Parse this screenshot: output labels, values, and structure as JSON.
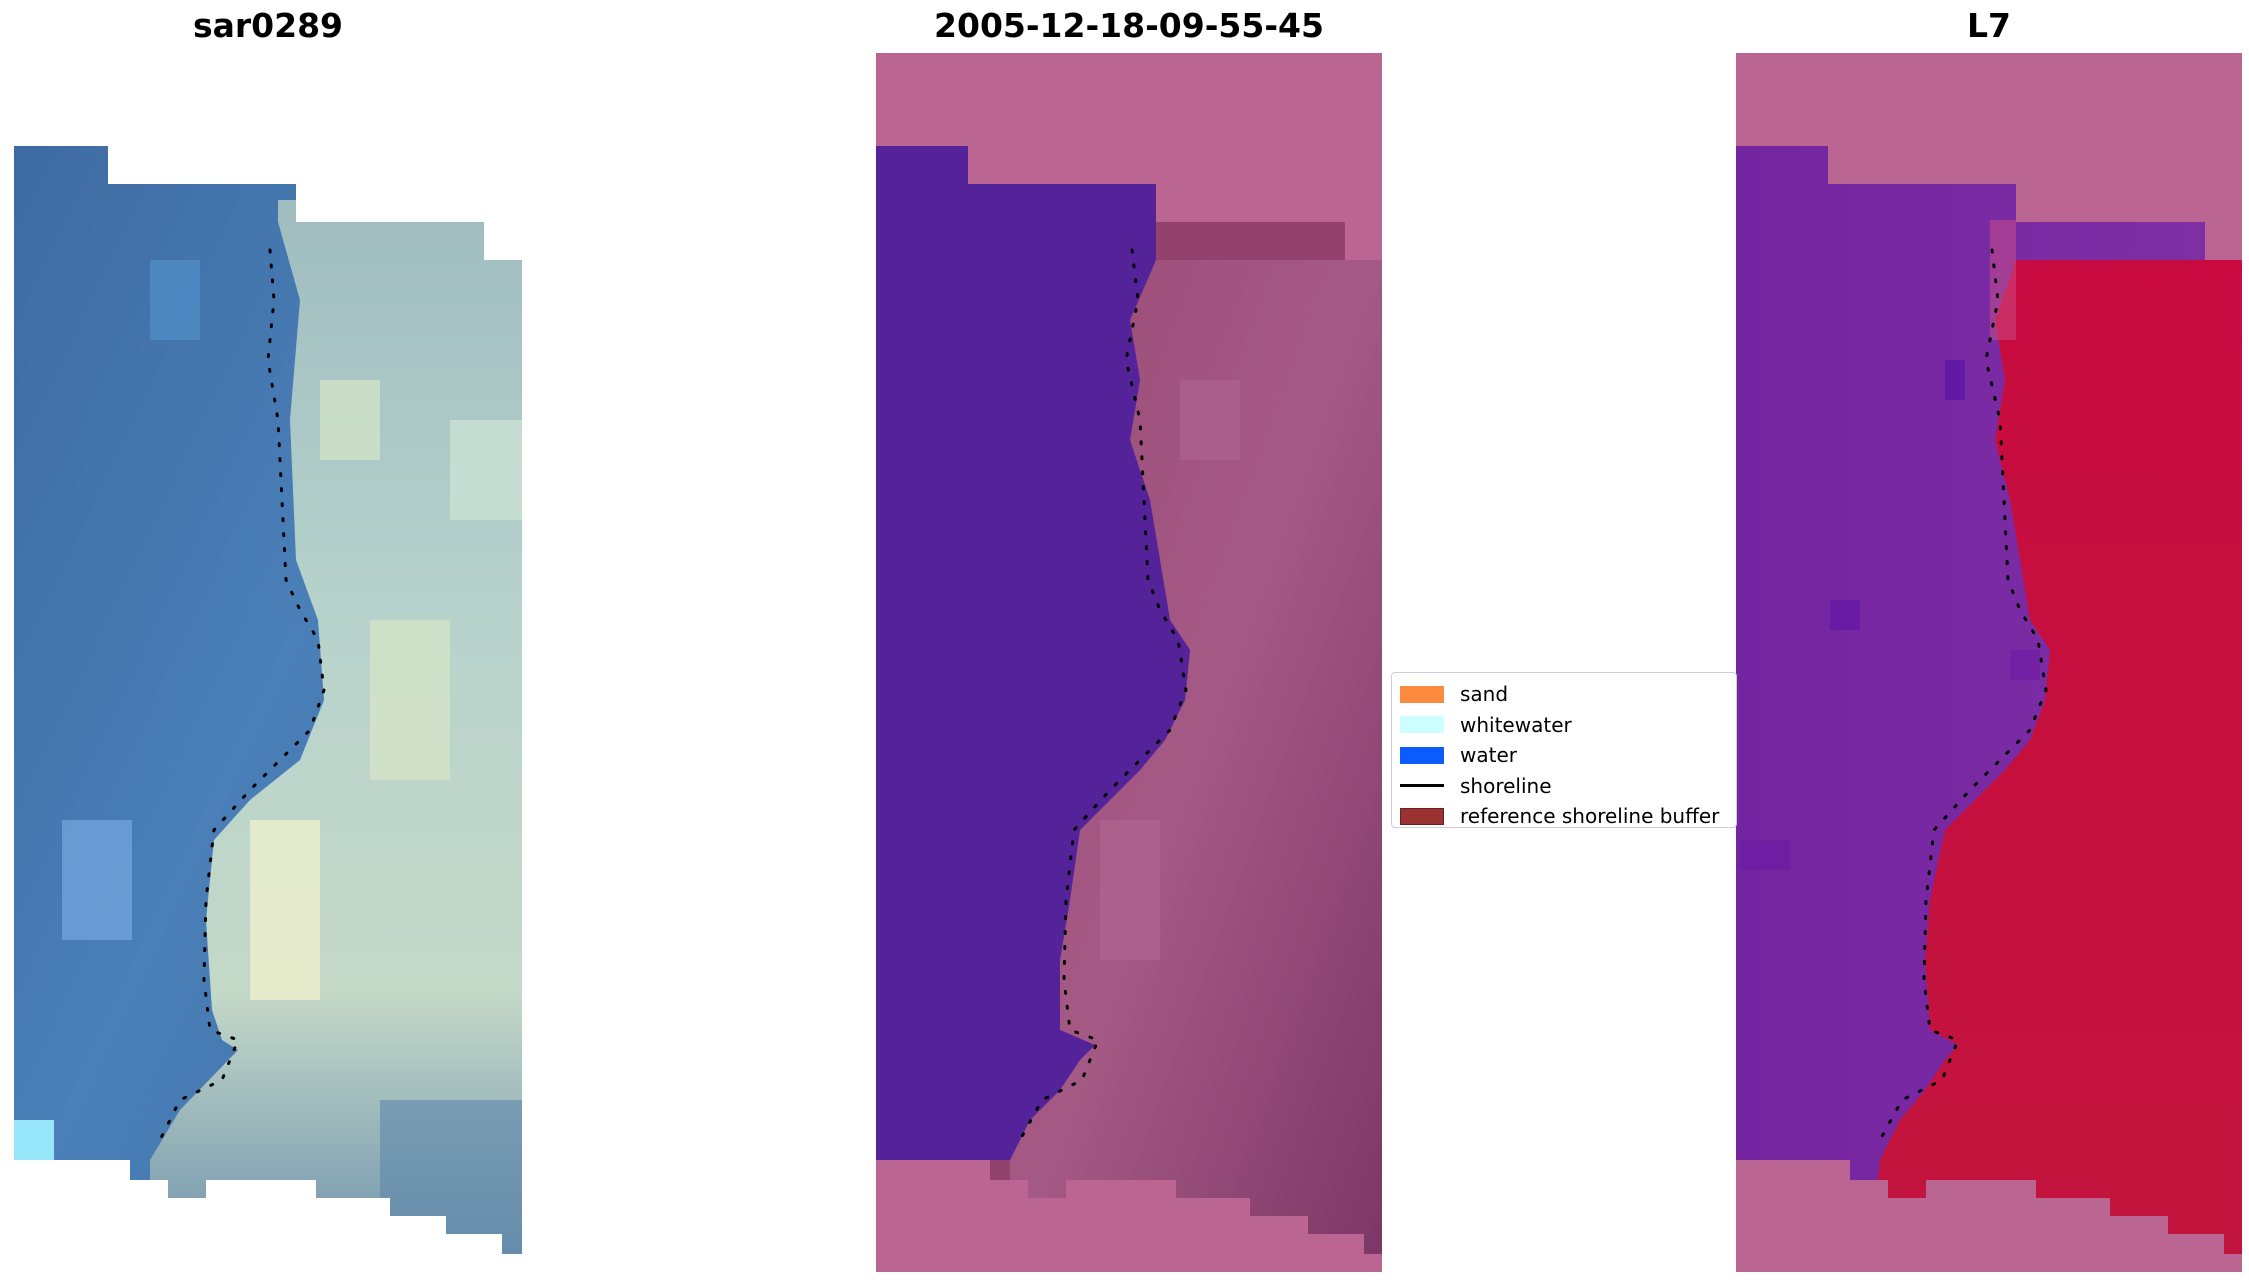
{
  "panels": [
    {
      "title": "sar0289",
      "kind": "rgb"
    },
    {
      "title": "2005-12-18-09-55-45",
      "kind": "classified"
    },
    {
      "title": "L7",
      "kind": "index"
    }
  ],
  "legend": {
    "items": [
      {
        "label": "sand",
        "color": "#fc8a3c",
        "type": "patch"
      },
      {
        "label": "whitewater",
        "color": "#ccffff",
        "type": "patch"
      },
      {
        "label": "water",
        "color": "#0a5cff",
        "type": "patch"
      },
      {
        "label": "shoreline",
        "color": "#000000",
        "type": "line"
      },
      {
        "label": "reference shoreline buffer",
        "color": "#9b3232",
        "type": "patch"
      }
    ]
  },
  "colors": {
    "water_blue": "#3f6ea3",
    "whitewater_green": "#a9c9c4",
    "mask_pink": "#bb6593",
    "class_water": "#54239a",
    "class_land": "#93426e",
    "index_water": "#7a22a0",
    "index_land": "#c40a3a"
  }
}
